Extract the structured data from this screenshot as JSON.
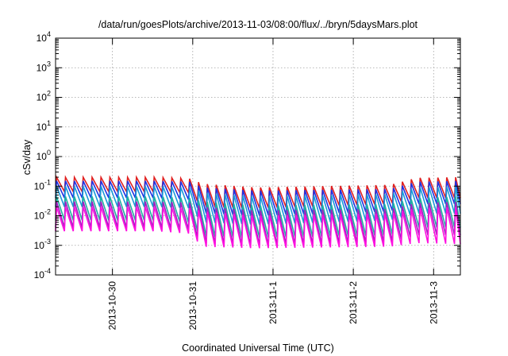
{
  "chart_data": {
    "type": "line",
    "title": "/data/run/goesPlots/archive/2013-11-03/08:00/flux/../bryn/5daysMars.plot",
    "xlabel": "Coordinated Universal Time (UTC)",
    "ylabel": "cSv/day",
    "yscale": "log",
    "ylim": [
      0.0001,
      10000
    ],
    "xlim": [
      "2013-10-29T07:00",
      "2013-11-03T08:00"
    ],
    "grid": true,
    "legend": "none",
    "y_ticks": [
      {
        "mantissa": "10",
        "exp": "-4",
        "value": 0.0001
      },
      {
        "mantissa": "10",
        "exp": "-3",
        "value": 0.001
      },
      {
        "mantissa": "10",
        "exp": "-2",
        "value": 0.01
      },
      {
        "mantissa": "10",
        "exp": "-1",
        "value": 0.1
      },
      {
        "mantissa": "10",
        "exp": "0",
        "value": 1
      },
      {
        "mantissa": "10",
        "exp": "1",
        "value": 10
      },
      {
        "mantissa": "10",
        "exp": "2",
        "value": 100
      },
      {
        "mantissa": "10",
        "exp": "3",
        "value": 1000
      },
      {
        "mantissa": "10",
        "exp": "4",
        "value": 10000
      }
    ],
    "x_ticks": [
      {
        "label": "2013-10-30",
        "date": "2013-10-30T00:00"
      },
      {
        "label": "2013-10-31",
        "date": "2013-10-31T00:00"
      },
      {
        "label": "2013-11-1",
        "date": "2013-11-01T00:00"
      },
      {
        "label": "2013-11-2",
        "date": "2013-11-02T00:00"
      },
      {
        "label": "2013-11-3",
        "date": "2013-11-03T00:00"
      }
    ],
    "series": [
      {
        "color": "#e02020",
        "cycle_hours": 2.65,
        "peaks": [
          [
            0,
            0.2
          ],
          [
            30,
            0.2
          ],
          [
            40,
            0.18
          ],
          [
            44,
            0.12
          ],
          [
            60,
            0.09
          ],
          [
            100,
            0.11
          ],
          [
            108,
            0.19
          ],
          [
            121,
            0.2
          ]
        ],
        "troughs": [
          [
            0,
            0.065
          ],
          [
            30,
            0.065
          ],
          [
            40,
            0.06
          ],
          [
            44,
            0.02
          ],
          [
            60,
            0.018
          ],
          [
            100,
            0.025
          ],
          [
            108,
            0.04
          ],
          [
            121,
            0.04
          ]
        ]
      },
      {
        "color": "#2030e0",
        "cycle_hours": 2.65,
        "peaks": [
          [
            0,
            0.15
          ],
          [
            30,
            0.15
          ],
          [
            40,
            0.14
          ],
          [
            44,
            0.09
          ],
          [
            60,
            0.07
          ],
          [
            100,
            0.08
          ],
          [
            108,
            0.14
          ],
          [
            121,
            0.15
          ]
        ],
        "troughs": [
          [
            0,
            0.04
          ],
          [
            30,
            0.04
          ],
          [
            40,
            0.035
          ],
          [
            44,
            0.012
          ],
          [
            60,
            0.01
          ],
          [
            100,
            0.014
          ],
          [
            108,
            0.025
          ],
          [
            121,
            0.025
          ]
        ]
      },
      {
        "color": "#1a9ad8",
        "cycle_hours": 2.65,
        "peaks": [
          [
            0,
            0.1
          ],
          [
            30,
            0.1
          ],
          [
            40,
            0.09
          ],
          [
            44,
            0.06
          ],
          [
            60,
            0.045
          ],
          [
            100,
            0.055
          ],
          [
            108,
            0.09
          ],
          [
            121,
            0.1
          ]
        ],
        "troughs": [
          [
            0,
            0.02
          ],
          [
            30,
            0.02
          ],
          [
            40,
            0.018
          ],
          [
            44,
            0.006
          ],
          [
            60,
            0.005
          ],
          [
            100,
            0.007
          ],
          [
            108,
            0.012
          ],
          [
            121,
            0.012
          ]
        ]
      },
      {
        "color": "#20b0a0",
        "cycle_hours": 2.65,
        "peaks": [
          [
            0,
            0.045
          ],
          [
            30,
            0.045
          ],
          [
            40,
            0.04
          ],
          [
            44,
            0.03
          ],
          [
            60,
            0.022
          ],
          [
            100,
            0.025
          ],
          [
            108,
            0.04
          ],
          [
            121,
            0.045
          ]
        ],
        "troughs": [
          [
            0,
            0.007
          ],
          [
            30,
            0.007
          ],
          [
            40,
            0.006
          ],
          [
            44,
            0.002
          ],
          [
            60,
            0.0018
          ],
          [
            100,
            0.0022
          ],
          [
            108,
            0.004
          ],
          [
            121,
            0.004
          ]
        ]
      },
      {
        "color": "#a020c0",
        "cycle_hours": 2.65,
        "peaks": [
          [
            0,
            0.03
          ],
          [
            30,
            0.03
          ],
          [
            40,
            0.028
          ],
          [
            44,
            0.02
          ],
          [
            60,
            0.015
          ],
          [
            100,
            0.017
          ],
          [
            108,
            0.027
          ],
          [
            121,
            0.03
          ]
        ],
        "troughs": [
          [
            0,
            0.004
          ],
          [
            30,
            0.004
          ],
          [
            40,
            0.0035
          ],
          [
            44,
            0.0012
          ],
          [
            60,
            0.001
          ],
          [
            100,
            0.0013
          ],
          [
            108,
            0.0022
          ],
          [
            121,
            0.0022
          ]
        ]
      },
      {
        "color": "#ff10e0",
        "cycle_hours": 2.65,
        "peaks": [
          [
            0,
            0.02
          ],
          [
            30,
            0.02
          ],
          [
            40,
            0.018
          ],
          [
            44,
            0.014
          ],
          [
            60,
            0.01
          ],
          [
            100,
            0.012
          ],
          [
            108,
            0.018
          ],
          [
            121,
            0.02
          ]
        ],
        "troughs": [
          [
            0,
            0.003
          ],
          [
            30,
            0.003
          ],
          [
            40,
            0.0025
          ],
          [
            44,
            0.0009
          ],
          [
            60,
            0.0008
          ],
          [
            100,
            0.0009
          ],
          [
            108,
            0.0012
          ],
          [
            121,
            0.0011
          ]
        ]
      }
    ]
  }
}
